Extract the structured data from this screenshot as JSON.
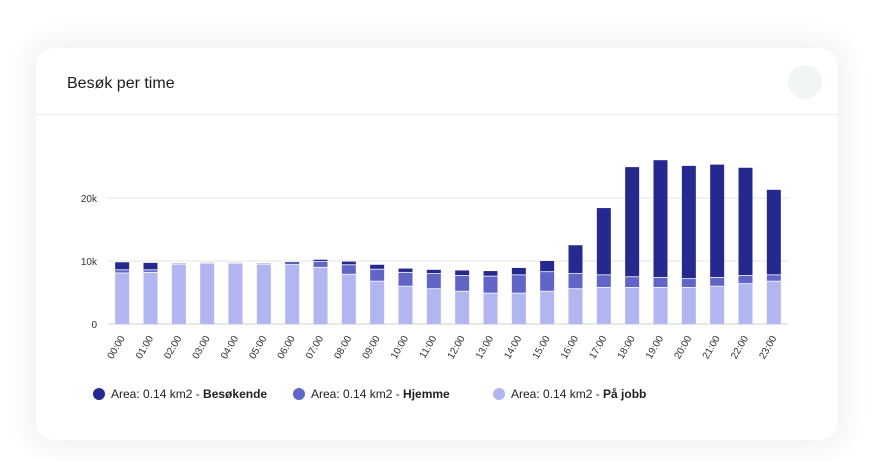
{
  "card": {
    "title": "Besøk per time"
  },
  "chart_data": {
    "type": "bar",
    "stacked": true,
    "categories": [
      "00:00",
      "01:00",
      "02:00",
      "03:00",
      "04:00",
      "05:00",
      "06:00",
      "07:00",
      "08:00",
      "09:00",
      "10:00",
      "11:00",
      "12:00",
      "13:00",
      "14:00",
      "15:00",
      "16:00",
      "17:00",
      "18:00",
      "19:00",
      "20:00",
      "21:00",
      "22:00",
      "23:00"
    ],
    "series": [
      {
        "name": "Area: 0.14 km2 - På jobb",
        "prefix": "Area: 0.14 km2 - ",
        "suffix": "På jobb",
        "color": "#b1b6f0",
        "values": [
          8100,
          8200,
          9500,
          9600,
          9600,
          9500,
          9500,
          9000,
          7900,
          6800,
          6000,
          5600,
          5200,
          4900,
          4900,
          5200,
          5600,
          5800,
          5800,
          5800,
          5800,
          6000,
          6400,
          6800
        ]
      },
      {
        "name": "Area: 0.14 km2 - Hjemme",
        "prefix": "Area: 0.14 km2 - ",
        "suffix": "Hjemme",
        "color": "#6265c8",
        "values": [
          500,
          400,
          0,
          0,
          0,
          0,
          0,
          900,
          1500,
          1900,
          2200,
          2400,
          2500,
          2700,
          2900,
          3100,
          2400,
          2000,
          1700,
          1600,
          1400,
          1400,
          1300,
          1000
        ]
      },
      {
        "name": "Area: 0.14 km2 - Besøkende",
        "prefix": "Area: 0.14 km2 - ",
        "suffix": "Besøkende",
        "color": "#25288e",
        "values": [
          1200,
          1100,
          100,
          100,
          100,
          100,
          300,
          300,
          500,
          700,
          600,
          600,
          800,
          800,
          1100,
          1700,
          4500,
          10600,
          17400,
          18600,
          17900,
          17900,
          17100,
          13500
        ]
      }
    ],
    "yticks": [
      0,
      10000,
      20000
    ],
    "ytick_labels": [
      "0",
      "10k",
      "20k"
    ],
    "ylim": [
      0,
      28000
    ],
    "grid": true,
    "legend_position": "bottom"
  }
}
